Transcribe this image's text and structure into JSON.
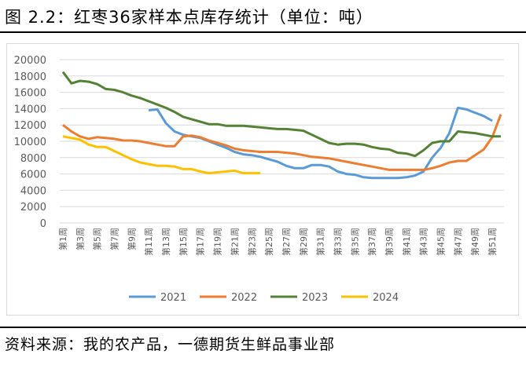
{
  "title": "图 2.2：红枣36家样本点库存统计（单位：吨）",
  "source": "资料来源：我的农产品，一德期货生鲜品事业部",
  "chart_data": {
    "type": "line",
    "title": "",
    "xlabel": "",
    "ylabel": "",
    "ylim": [
      0,
      20000
    ],
    "yticks": [
      0,
      2000,
      4000,
      6000,
      8000,
      10000,
      12000,
      14000,
      16000,
      18000,
      20000
    ],
    "grid": true,
    "legend": "bottom",
    "x_tick_labels": [
      "第1周",
      "第3周",
      "第5周",
      "第7周",
      "第9周",
      "第11周",
      "第13周",
      "第15周",
      "第17周",
      "第19周",
      "第21周",
      "第23周",
      "第25周",
      "第27周",
      "第29周",
      "第31周",
      "第33周",
      "第35周",
      "第37周",
      "第39周",
      "第41周",
      "第43周",
      "第45周",
      "第47周",
      "第49周",
      "第51周"
    ],
    "weeks": [
      1,
      2,
      3,
      4,
      5,
      6,
      7,
      8,
      9,
      10,
      11,
      12,
      13,
      14,
      15,
      16,
      17,
      18,
      19,
      20,
      21,
      22,
      23,
      24,
      25,
      26,
      27,
      28,
      29,
      30,
      31,
      32,
      33,
      34,
      35,
      36,
      37,
      38,
      39,
      40,
      41,
      42,
      43,
      44,
      45,
      46,
      47,
      48,
      49,
      50,
      51,
      52
    ],
    "series": [
      {
        "name": "2021",
        "color": "#5b9bd5",
        "start_week": 11,
        "values": [
          13800,
          13900,
          12200,
          11200,
          10800,
          10600,
          10400,
          10000,
          9600,
          9200,
          8700,
          8400,
          8300,
          8100,
          7800,
          7500,
          7000,
          6700,
          6700,
          7100,
          7100,
          6900,
          6300,
          6000,
          5900,
          5600,
          5500,
          5500,
          5500,
          5500,
          5600,
          5800,
          6300,
          8000,
          9200,
          11000,
          14100,
          13900,
          13500,
          13100,
          12500
        ]
      },
      {
        "name": "2022",
        "color": "#ed7d31",
        "start_week": 1,
        "values": [
          12000,
          11200,
          10600,
          10300,
          10500,
          10400,
          10300,
          10100,
          10100,
          10000,
          9800,
          9600,
          9400,
          9400,
          10600,
          10700,
          10500,
          10100,
          9800,
          9500,
          9100,
          8900,
          8800,
          8700,
          8700,
          8700,
          8600,
          8500,
          8300,
          8100,
          8000,
          7900,
          7700,
          7500,
          7300,
          7100,
          6900,
          6700,
          6500,
          6500,
          6500,
          6500,
          6500,
          6700,
          7000,
          7400,
          7600,
          7600,
          8300,
          9000,
          10500,
          13300
        ]
      },
      {
        "name": "2023",
        "color": "#548235",
        "start_week": 1,
        "values": [
          18500,
          17100,
          17400,
          17300,
          17000,
          16400,
          16300,
          16000,
          15600,
          15300,
          14900,
          14500,
          14100,
          13600,
          13000,
          12700,
          12400,
          12100,
          12100,
          11900,
          11900,
          11900,
          11800,
          11700,
          11600,
          11500,
          11500,
          11400,
          11300,
          10800,
          10300,
          9800,
          9600,
          9700,
          9700,
          9600,
          9300,
          9100,
          9000,
          8600,
          8500,
          8200,
          8900,
          9800,
          10000,
          10000,
          11200,
          11100,
          11000,
          10800,
          10600,
          10600
        ]
      },
      {
        "name": "2024",
        "color": "#ffc000",
        "start_week": 1,
        "values": [
          10600,
          10400,
          10200,
          9600,
          9300,
          9300,
          8800,
          8300,
          7800,
          7400,
          7200,
          7000,
          7000,
          6900,
          6600,
          6600,
          6300,
          6100,
          6200,
          6300,
          6400,
          6100,
          6100,
          6100
        ]
      }
    ]
  }
}
